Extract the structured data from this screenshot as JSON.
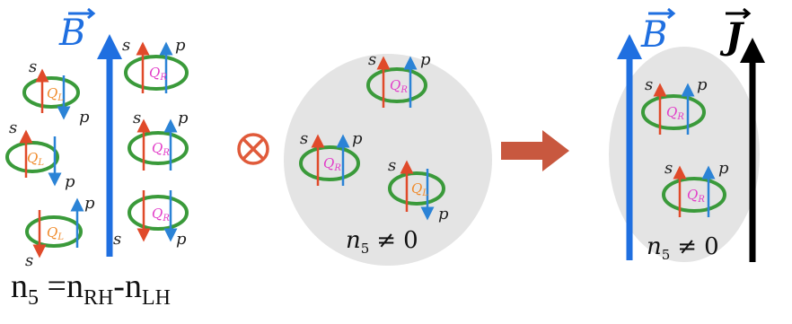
{
  "field_labels": {
    "B": "B",
    "J": "J"
  },
  "vec_labels": {
    "s": "s",
    "p": "p"
  },
  "charges": {
    "left": "Q",
    "left_sub": "L",
    "right": "Q",
    "right_sub": "R"
  },
  "op_symbol": "⊗",
  "chirality": {
    "n": "n",
    "sub": "5",
    "rel": "≠",
    "val": "0"
  },
  "formula": {
    "n5": "n",
    "n5_sub": "5",
    "eq": " =",
    "nRH": "n",
    "nRH_sub": "RH",
    "dash": "-",
    "nLH": "n",
    "nLH_sub": "LH"
  },
  "colors": {
    "B_arrow": "#1f6fe0",
    "J_arrow": "#000000",
    "spin": "#e04a2a",
    "momentum": "#2b83d6",
    "ring": "#3a9a3a",
    "QL": "#f08a2a",
    "QR": "#e23cc8",
    "blob": "#e3e3e3",
    "process_arrow": "#c8583f",
    "op": "#e05a3a"
  }
}
